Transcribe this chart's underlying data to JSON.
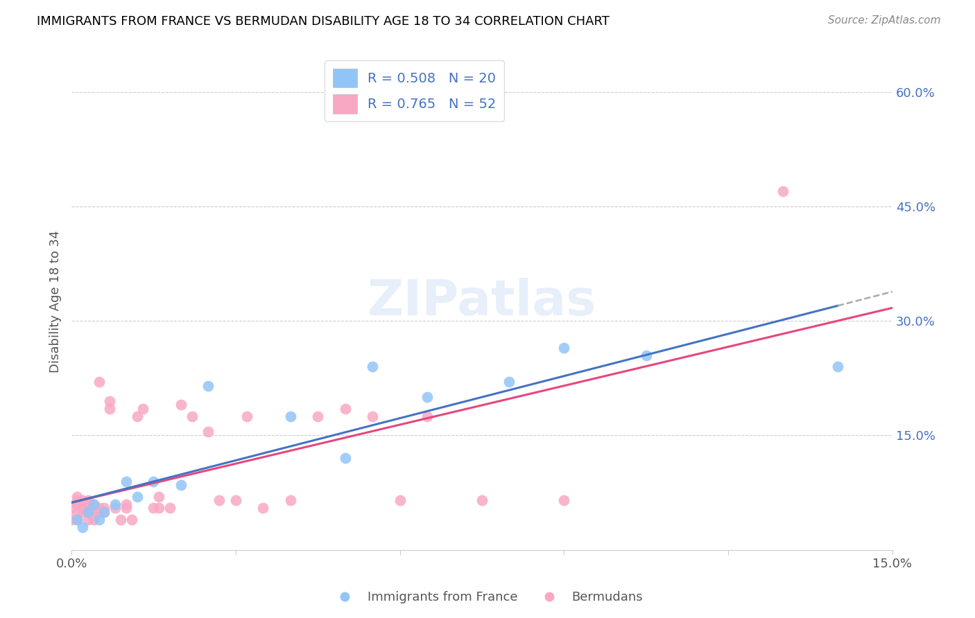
{
  "title": "IMMIGRANTS FROM FRANCE VS BERMUDAN DISABILITY AGE 18 TO 34 CORRELATION CHART",
  "source": "Source: ZipAtlas.com",
  "ylabel": "Disability Age 18 to 34",
  "xlim": [
    0.0,
    0.15
  ],
  "ylim": [
    0.0,
    0.65
  ],
  "blue_R": 0.508,
  "blue_N": 20,
  "pink_R": 0.765,
  "pink_N": 52,
  "blue_color": "#92C5F7",
  "pink_color": "#F9A8C4",
  "blue_line_color": "#4472C4",
  "pink_line_color": "#E8457A",
  "gray_dash_color": "#aaaaaa",
  "watermark": "ZIPatlas",
  "legend_label_blue": "Immigrants from France",
  "legend_label_pink": "Bermudans",
  "blue_x": [
    0.001,
    0.002,
    0.003,
    0.004,
    0.005,
    0.006,
    0.008,
    0.01,
    0.012,
    0.015,
    0.02,
    0.025,
    0.04,
    0.05,
    0.055,
    0.065,
    0.08,
    0.09,
    0.105,
    0.14
  ],
  "blue_y": [
    0.04,
    0.03,
    0.05,
    0.06,
    0.04,
    0.05,
    0.06,
    0.09,
    0.07,
    0.09,
    0.085,
    0.215,
    0.175,
    0.12,
    0.24,
    0.2,
    0.22,
    0.265,
    0.255,
    0.24
  ],
  "pink_x": [
    0.0,
    0.0,
    0.001,
    0.001,
    0.001,
    0.001,
    0.001,
    0.002,
    0.002,
    0.002,
    0.002,
    0.003,
    0.003,
    0.003,
    0.003,
    0.004,
    0.004,
    0.004,
    0.005,
    0.005,
    0.005,
    0.006,
    0.006,
    0.007,
    0.007,
    0.008,
    0.009,
    0.01,
    0.01,
    0.011,
    0.012,
    0.013,
    0.015,
    0.016,
    0.016,
    0.018,
    0.02,
    0.022,
    0.025,
    0.027,
    0.03,
    0.032,
    0.035,
    0.04,
    0.045,
    0.05,
    0.055,
    0.06,
    0.065,
    0.075,
    0.09,
    0.13
  ],
  "pink_y": [
    0.04,
    0.055,
    0.05,
    0.06,
    0.065,
    0.07,
    0.04,
    0.05,
    0.055,
    0.06,
    0.065,
    0.04,
    0.05,
    0.06,
    0.065,
    0.04,
    0.05,
    0.06,
    0.05,
    0.055,
    0.22,
    0.05,
    0.055,
    0.185,
    0.195,
    0.055,
    0.04,
    0.055,
    0.06,
    0.04,
    0.175,
    0.185,
    0.055,
    0.055,
    0.07,
    0.055,
    0.19,
    0.175,
    0.155,
    0.065,
    0.065,
    0.175,
    0.055,
    0.065,
    0.175,
    0.185,
    0.175,
    0.065,
    0.175,
    0.065,
    0.065,
    0.47
  ]
}
